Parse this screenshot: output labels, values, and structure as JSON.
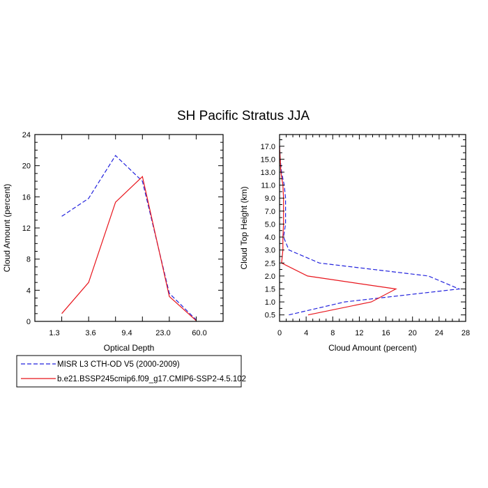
{
  "figure": {
    "title": "SH Pacific Stratus JJA"
  },
  "colors": {
    "obs": "#2222dd",
    "model": "#e8141b",
    "frame": "#000000"
  },
  "legend": {
    "entries": [
      {
        "label": "MISR L3 CTH-OD V5 (2000-2009)",
        "style": "dashed",
        "color": "#2222dd"
      },
      {
        "label": "b.e21.BSSP245cmip6.f09_g17.CMIP6-SSP2-4.5.102",
        "style": "solid",
        "color": "#e8141b"
      }
    ]
  },
  "chart_data": [
    {
      "type": "line",
      "xlabel": "Optical Depth",
      "ylabel": "Cloud Amount (percent)",
      "x_ticks": [
        "1.3",
        "3.6",
        "9.4",
        "23.0",
        "60.0"
      ],
      "y_ticks": [
        "0",
        "4",
        "8",
        "12",
        "16",
        "20",
        "24"
      ],
      "ylim": [
        0,
        24
      ],
      "x_bins": 7,
      "series": [
        {
          "name": "MISR L3 CTH-OD V5 (2000-2009)",
          "style": "dashed",
          "values": [
            13.5,
            15.8,
            21.3,
            18.0,
            3.6,
            0.2
          ]
        },
        {
          "name": "b.e21.BSSP245cmip6.f09_g17.CMIP6-SSP2-4.5.102",
          "style": "solid",
          "values": [
            1.0,
            5.0,
            15.3,
            18.6,
            3.2,
            0.1
          ]
        }
      ]
    },
    {
      "type": "line",
      "xlabel": "Cloud Amount (percent)",
      "ylabel": "Cloud Top Height (km)",
      "x_ticks": [
        "0",
        "4",
        "8",
        "12",
        "16",
        "20",
        "24",
        "28"
      ],
      "xlim": [
        0,
        28
      ],
      "y_ticks": [
        "0.5",
        "1.0",
        "1.5",
        "2.0",
        "2.5",
        "3.0",
        "4.0",
        "5.0",
        "7.0",
        "9.0",
        "11.0",
        "13.0",
        "15.0",
        "17.0"
      ],
      "series": [
        {
          "name": "MISR L3 CTH-OD V5 (2000-2009)",
          "style": "dashed",
          "values": [
            1.4,
            9.8,
            27.0,
            22.4,
            6.0,
            1.4,
            0.6,
            0.9,
            0.9,
            0.9,
            0.7,
            0.3,
            0.1,
            0.0
          ]
        },
        {
          "name": "b.e21.BSSP245cmip6.f09_g17.CMIP6-SSP2-4.5.102",
          "style": "solid",
          "values": [
            4.3,
            13.8,
            17.5,
            4.2,
            0.3,
            0.5,
            0.5,
            0.6,
            0.6,
            0.6,
            0.5,
            0.2,
            0.1,
            0.0
          ]
        }
      ]
    }
  ]
}
